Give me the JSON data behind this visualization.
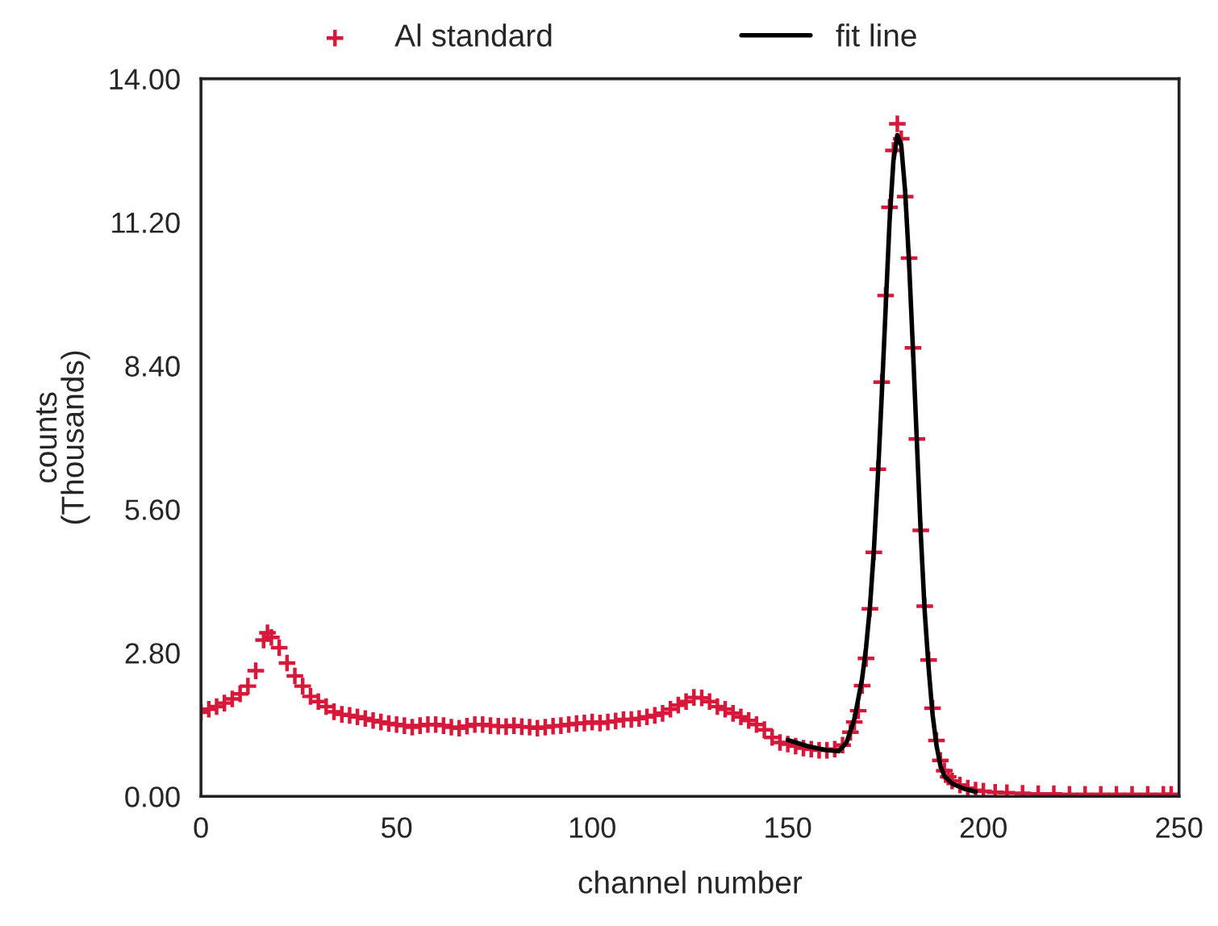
{
  "chart_data": {
    "type": "scatter",
    "xlabel": "channel number",
    "ylabel": "counts\n(Thousands)",
    "xlim": [
      0,
      250
    ],
    "xticks": [
      0,
      50,
      100,
      150,
      200,
      250
    ],
    "ylim": [
      0,
      14
    ],
    "yticks": [
      {
        "value": 0,
        "label": "0.00"
      },
      {
        "value": 2.8,
        "label": "2.80"
      },
      {
        "value": 5.6,
        "label": "5.60"
      },
      {
        "value": 8.4,
        "label": "8.40"
      },
      {
        "value": 11.2,
        "label": "11.20"
      },
      {
        "value": 14,
        "label": "14.00"
      }
    ],
    "grid": false,
    "legend": "top",
    "series": [
      {
        "name": "Al standard",
        "marker": "cross",
        "color": "#d8183a",
        "x": [
          0,
          2,
          4,
          6,
          8,
          10,
          12,
          14,
          16,
          17,
          18,
          20,
          22,
          24,
          26,
          28,
          30,
          32,
          34,
          36,
          38,
          40,
          42,
          44,
          46,
          48,
          50,
          52,
          54,
          56,
          58,
          60,
          62,
          64,
          66,
          68,
          70,
          72,
          74,
          76,
          78,
          80,
          82,
          84,
          86,
          88,
          90,
          92,
          94,
          96,
          98,
          100,
          102,
          104,
          106,
          108,
          110,
          112,
          114,
          116,
          118,
          120,
          122,
          124,
          126,
          128,
          130,
          132,
          134,
          136,
          138,
          140,
          142,
          144,
          146,
          148,
          150,
          152,
          154,
          156,
          158,
          160,
          162,
          164,
          166,
          167,
          168,
          169,
          170,
          171,
          172,
          173,
          174,
          175,
          176,
          177,
          178,
          179,
          180,
          181,
          182,
          183,
          184,
          185,
          186,
          187,
          188,
          189,
          190,
          191,
          192,
          194,
          196,
          198,
          200,
          203,
          206,
          210,
          214,
          218,
          222,
          226,
          230,
          234,
          238,
          242,
          246,
          248
        ],
        "values": [
          1.64,
          1.7,
          1.75,
          1.82,
          1.9,
          2.0,
          2.15,
          2.45,
          3.05,
          3.19,
          3.1,
          2.9,
          2.6,
          2.35,
          2.15,
          1.95,
          1.85,
          1.75,
          1.65,
          1.6,
          1.58,
          1.55,
          1.52,
          1.48,
          1.45,
          1.42,
          1.4,
          1.38,
          1.35,
          1.38,
          1.4,
          1.4,
          1.38,
          1.35,
          1.33,
          1.37,
          1.4,
          1.4,
          1.38,
          1.37,
          1.36,
          1.38,
          1.36,
          1.35,
          1.33,
          1.35,
          1.37,
          1.38,
          1.4,
          1.42,
          1.43,
          1.45,
          1.43,
          1.45,
          1.47,
          1.5,
          1.5,
          1.52,
          1.55,
          1.58,
          1.62,
          1.7,
          1.78,
          1.85,
          1.93,
          1.92,
          1.85,
          1.75,
          1.7,
          1.62,
          1.55,
          1.48,
          1.4,
          1.3,
          1.15,
          1.05,
          1.02,
          0.98,
          0.94,
          0.92,
          0.9,
          0.9,
          0.92,
          1.0,
          1.25,
          1.45,
          1.67,
          2.16,
          2.69,
          3.66,
          4.76,
          6.38,
          8.08,
          9.77,
          11.49,
          12.6,
          13.12,
          12.83,
          11.7,
          10.5,
          8.75,
          6.97,
          5.19,
          3.71,
          2.66,
          1.72,
          1.09,
          0.7,
          0.5,
          0.38,
          0.3,
          0.22,
          0.16,
          0.12,
          0.1,
          0.08,
          0.07,
          0.06,
          0.05,
          0.05,
          0.04,
          0.04,
          0.04,
          0.04,
          0.04,
          0.04,
          0.04,
          0.04
        ]
      },
      {
        "name": "fit line",
        "type": "line",
        "line_style": "solid",
        "color": "#000000",
        "x": [
          150,
          155,
          160,
          163,
          165,
          167,
          169,
          170,
          171,
          172,
          173,
          174,
          175,
          176,
          177,
          178,
          179,
          180,
          181,
          182,
          183,
          184,
          185,
          186,
          187,
          188,
          189,
          190,
          192,
          195,
          198
        ],
        "values": [
          1.1,
          0.98,
          0.9,
          0.88,
          1.05,
          1.5,
          2.3,
          2.9,
          3.7,
          4.8,
          6.2,
          7.8,
          9.5,
          11.2,
          12.4,
          12.9,
          12.7,
          11.8,
          10.4,
          8.7,
          6.9,
          5.1,
          3.6,
          2.5,
          1.6,
          1.0,
          0.6,
          0.4,
          0.25,
          0.15,
          0.09
        ]
      }
    ]
  }
}
